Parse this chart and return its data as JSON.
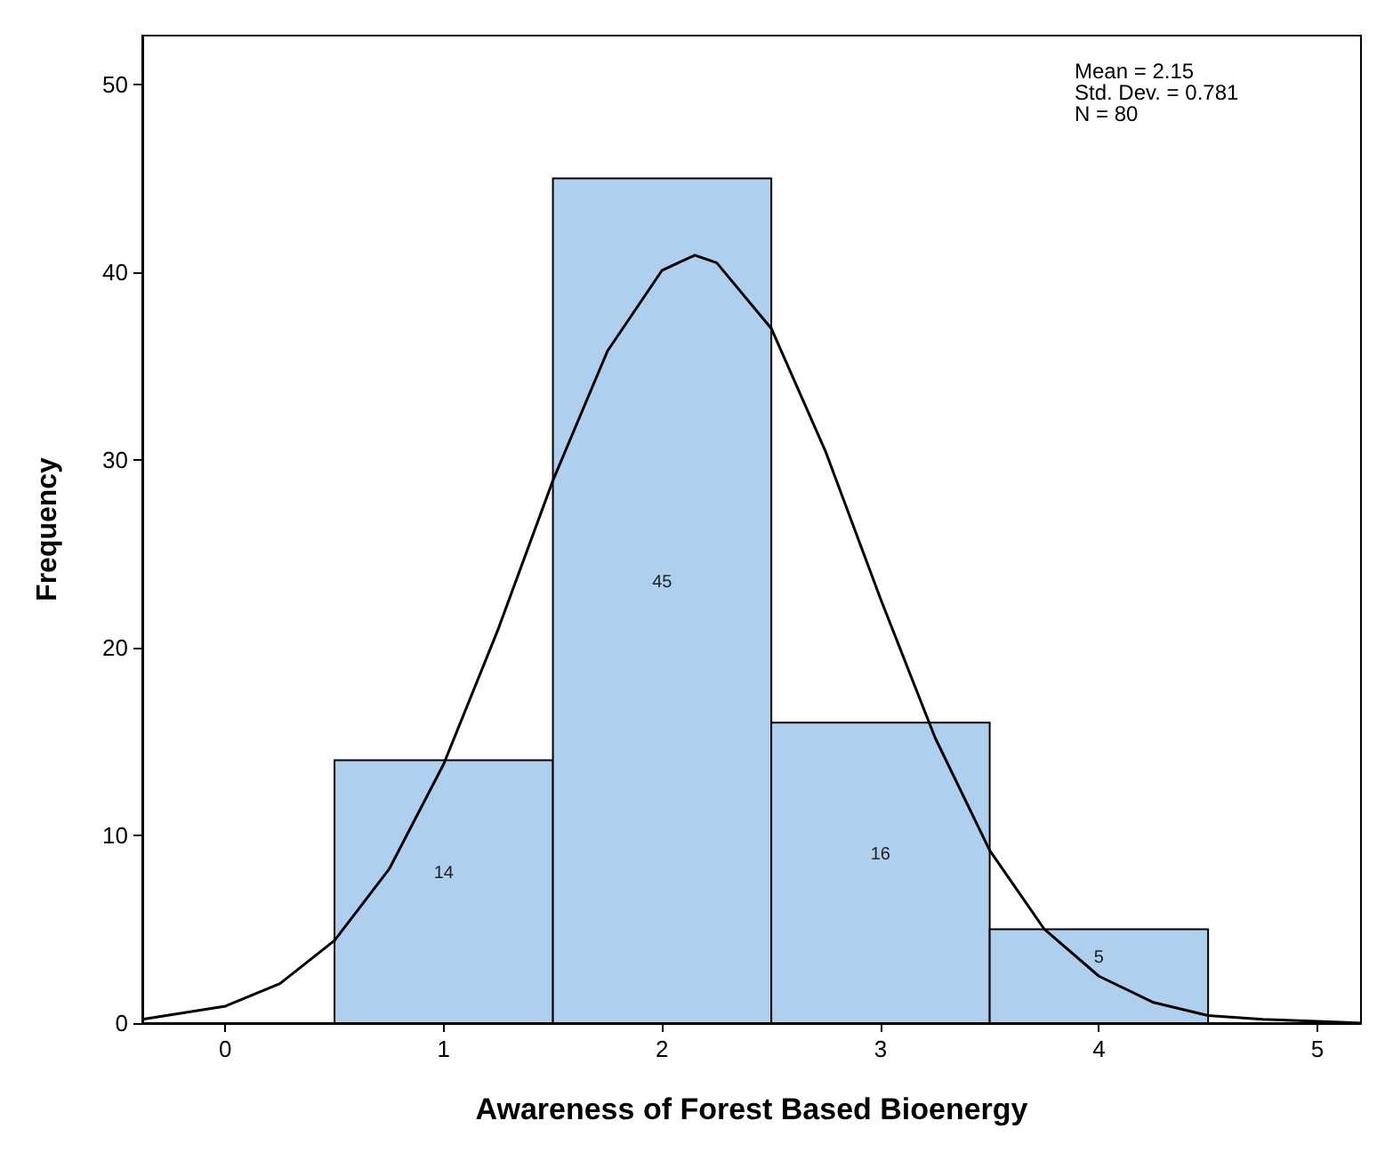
{
  "chart_data": {
    "type": "histogram",
    "xlabel": "Awareness of Forest Based Bioenergy",
    "ylabel": "Frequency",
    "bins": [
      0.5,
      1.5,
      2.5,
      3.5,
      4.5
    ],
    "values": [
      14,
      45,
      16,
      5
    ],
    "color": "#aed0ee",
    "value_labels": [
      "14",
      "45",
      "16",
      "5"
    ],
    "series": [
      {
        "type": "line",
        "color": "#000000",
        "marker": "none",
        "x": [
          -0.38,
          0,
          0.25,
          0.5,
          0.75,
          1,
          1.25,
          1.5,
          1.75,
          2,
          2.15,
          2.25,
          2.5,
          2.75,
          3,
          3.25,
          3.5,
          3.75,
          4,
          4.25,
          4.5,
          4.75,
          5,
          5.2
        ],
        "values": [
          0.2,
          0.9,
          2.1,
          4.4,
          8.2,
          13.8,
          21,
          28.9,
          35.8,
          40.1,
          40.9,
          40.5,
          37,
          30.4,
          22.6,
          15.2,
          9.2,
          5,
          2.5,
          1.1,
          0.4,
          0.2,
          0.1,
          0
        ]
      }
    ],
    "xlim": [
      -0.38,
      5.2
    ],
    "ylim": [
      0,
      52.6
    ],
    "xticks": [
      0,
      1,
      2,
      3,
      4,
      5
    ],
    "yticks": [
      0,
      10,
      20,
      30,
      40,
      50
    ],
    "grid": false,
    "annotations": [
      "Mean = 2.15",
      "Std. Dev. = 0.781",
      "N = 80"
    ]
  }
}
